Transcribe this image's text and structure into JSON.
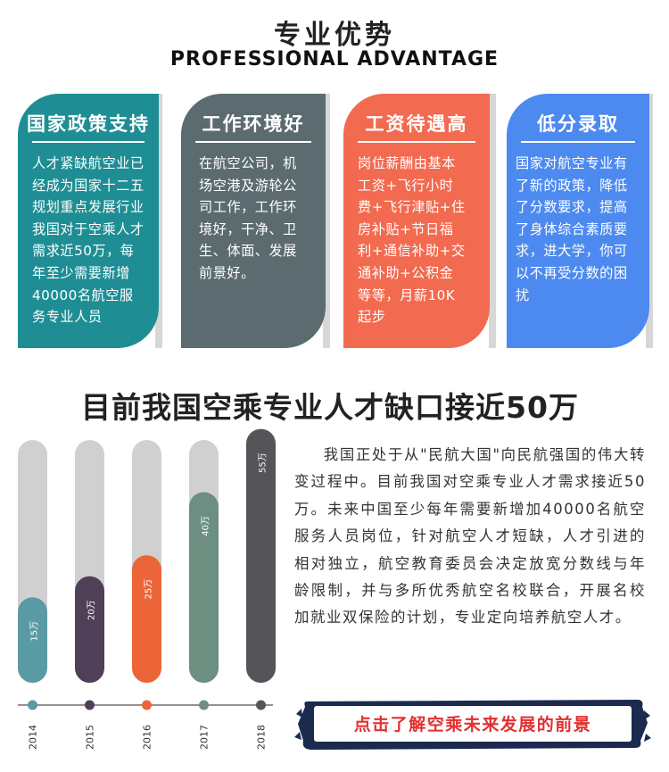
{
  "header": {
    "title_cn": "专业优势",
    "title_en": "PROFESSIONAL ADVANTAGE"
  },
  "cards": [
    {
      "title": "国家政策支持",
      "lines": [
        "人才紧缺航空业已",
        "经成为国家十二五",
        "规划重点发展行业",
        "我国对于空乘人才",
        "需求近50万，每",
        "年至少需要新增",
        "40000名航空服",
        "务专业人员"
      ],
      "color": "#1e8e94"
    },
    {
      "title": "工作环境好",
      "lines": [
        "在航空公司，机",
        "场空港及游轮公",
        "司工作，工作环",
        "境好，干净、卫",
        "生、体面、发展",
        "前景好。"
      ],
      "color": "#5b6b70"
    },
    {
      "title": "工资待遇高",
      "lines": [
        "岗位薪酬由基本",
        "工资+飞行小时",
        "费+飞行津贴+住",
        "房补贴+节日福",
        "利+通信补助+交",
        "通补助+公积金",
        "等等，月薪10K",
        "起步"
      ],
      "color": "#f26a4f"
    },
    {
      "title": "低分录取",
      "lines": [
        "国家对航空专业有",
        "了新的政策，降低",
        "了分数要求，提高",
        "了身体综合素质要",
        "求，进大学，你可",
        "以不再受分数的困",
        "扰"
      ],
      "color": "#4d8af0"
    }
  ],
  "headline": "目前我国空乘专业人才缺口接近50万",
  "chart_data": {
    "type": "bar",
    "categories": [
      "2014",
      "2015",
      "2016",
      "2017",
      "2018"
    ],
    "values": [
      15,
      20,
      25,
      40,
      55
    ],
    "value_labels": [
      "15万",
      "20万",
      "25万",
      "40万",
      "55万"
    ],
    "ylim": [
      0,
      60
    ],
    "colors": [
      "#5a9aa5",
      "#4f3f57",
      "#ec6538",
      "#6c8f82",
      "#555559"
    ],
    "track_color": "#d0d0d0",
    "axis_color": "#7a6a6a"
  },
  "paragraph": "我国正处于从\"民航大国\"向民航强国的伟大转变过程中。目前我国对空乘专业人才需求接近50万。未来中国至少每年需要新增加40000名航空服务人员岗位，针对航空人才短缺，人才引进的相对独立，航空教育委员会决定放宽分数线与年龄限制，并与多所优秀航空名校联合，开展名校加就业双保险的计划，专业定向培养航空人才。",
  "cta": {
    "label": "点击了解空乘未来发展的前景",
    "bg_color": "#1c2a4e",
    "text_color": "#e23030"
  }
}
